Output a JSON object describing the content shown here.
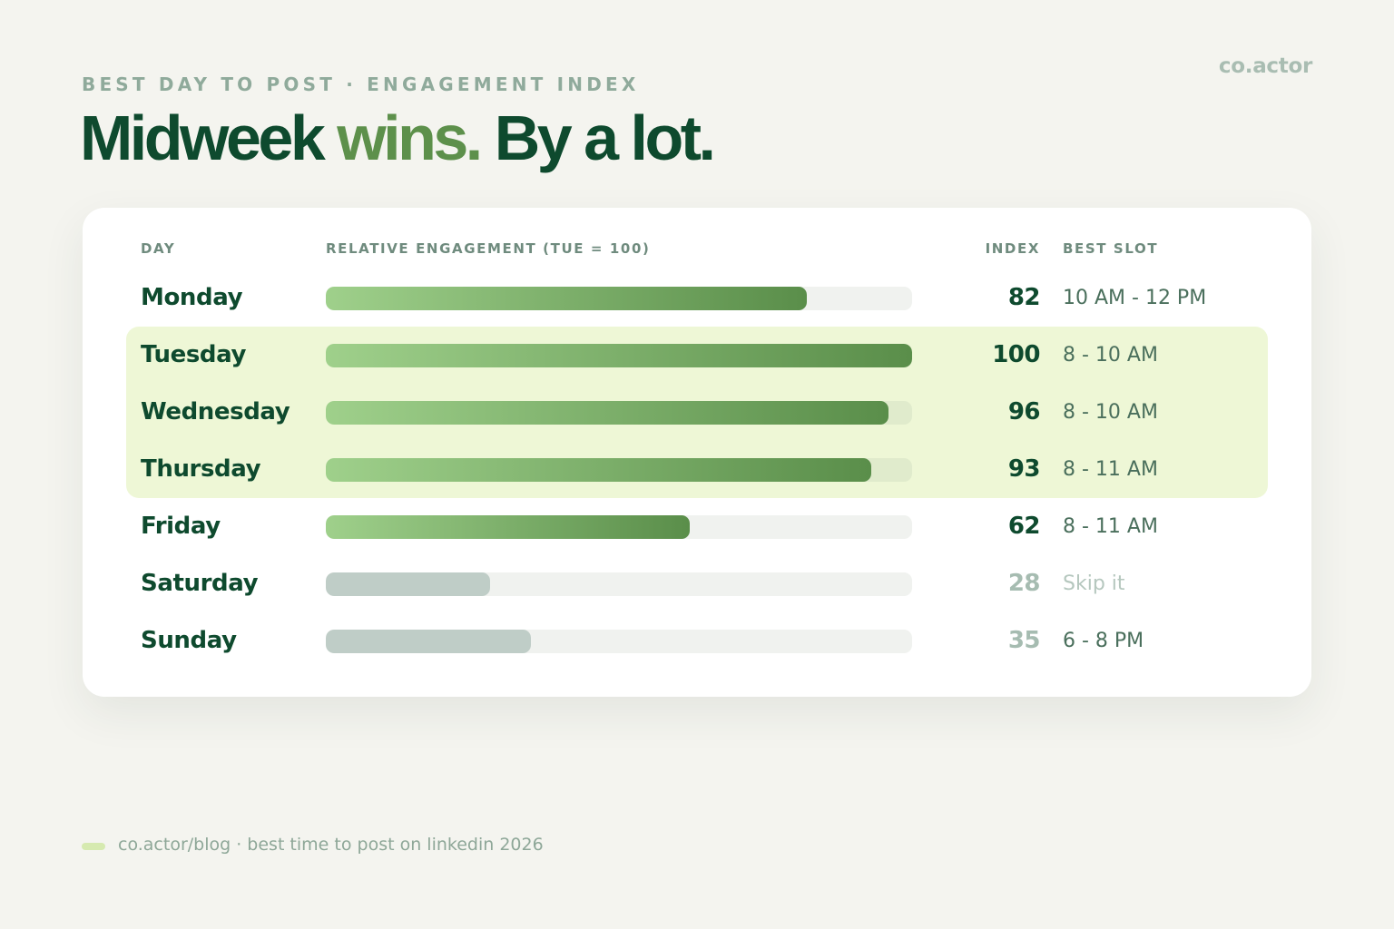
{
  "brand": "co.actor",
  "eyebrow": "BEST DAY TO POST · ENGAGEMENT INDEX",
  "headline": {
    "part1": "Midweek ",
    "accent": "wins.",
    "part2": " By a lot."
  },
  "columns": {
    "day": "DAY",
    "relative": "RELATIVE ENGAGEMENT (TUE = 100)",
    "index": "INDEX",
    "slot": "BEST SLOT"
  },
  "chart_data": {
    "type": "bar",
    "title": "Midweek wins. By a lot.",
    "xlabel": "RELATIVE ENGAGEMENT (TUE = 100)",
    "ylabel": "DAY",
    "xlim": [
      0,
      100
    ],
    "categories": [
      "Monday",
      "Tuesday",
      "Wednesday",
      "Thursday",
      "Friday",
      "Saturday",
      "Sunday"
    ],
    "values": [
      82,
      100,
      96,
      93,
      62,
      28,
      35
    ],
    "best_slot": [
      "10 AM - 12 PM",
      "8 - 10 AM",
      "8 - 10 AM",
      "8 - 11 AM",
      "8 - 11 AM",
      "Skip it",
      "6 - 8 PM"
    ],
    "highlighted": [
      "Tuesday",
      "Wednesday",
      "Thursday"
    ],
    "muted": [
      "Saturday",
      "Sunday"
    ],
    "colors": {
      "bar_start": "#9fd08b",
      "bar_end": "#5a8e4a",
      "bar_muted": "#bfcdc7",
      "highlight_row": "#eef7d6",
      "text_dark": "#0e4a2e",
      "accent": "#5d904b"
    }
  },
  "footer": "co.actor/blog · best time to post on linkedin 2026"
}
